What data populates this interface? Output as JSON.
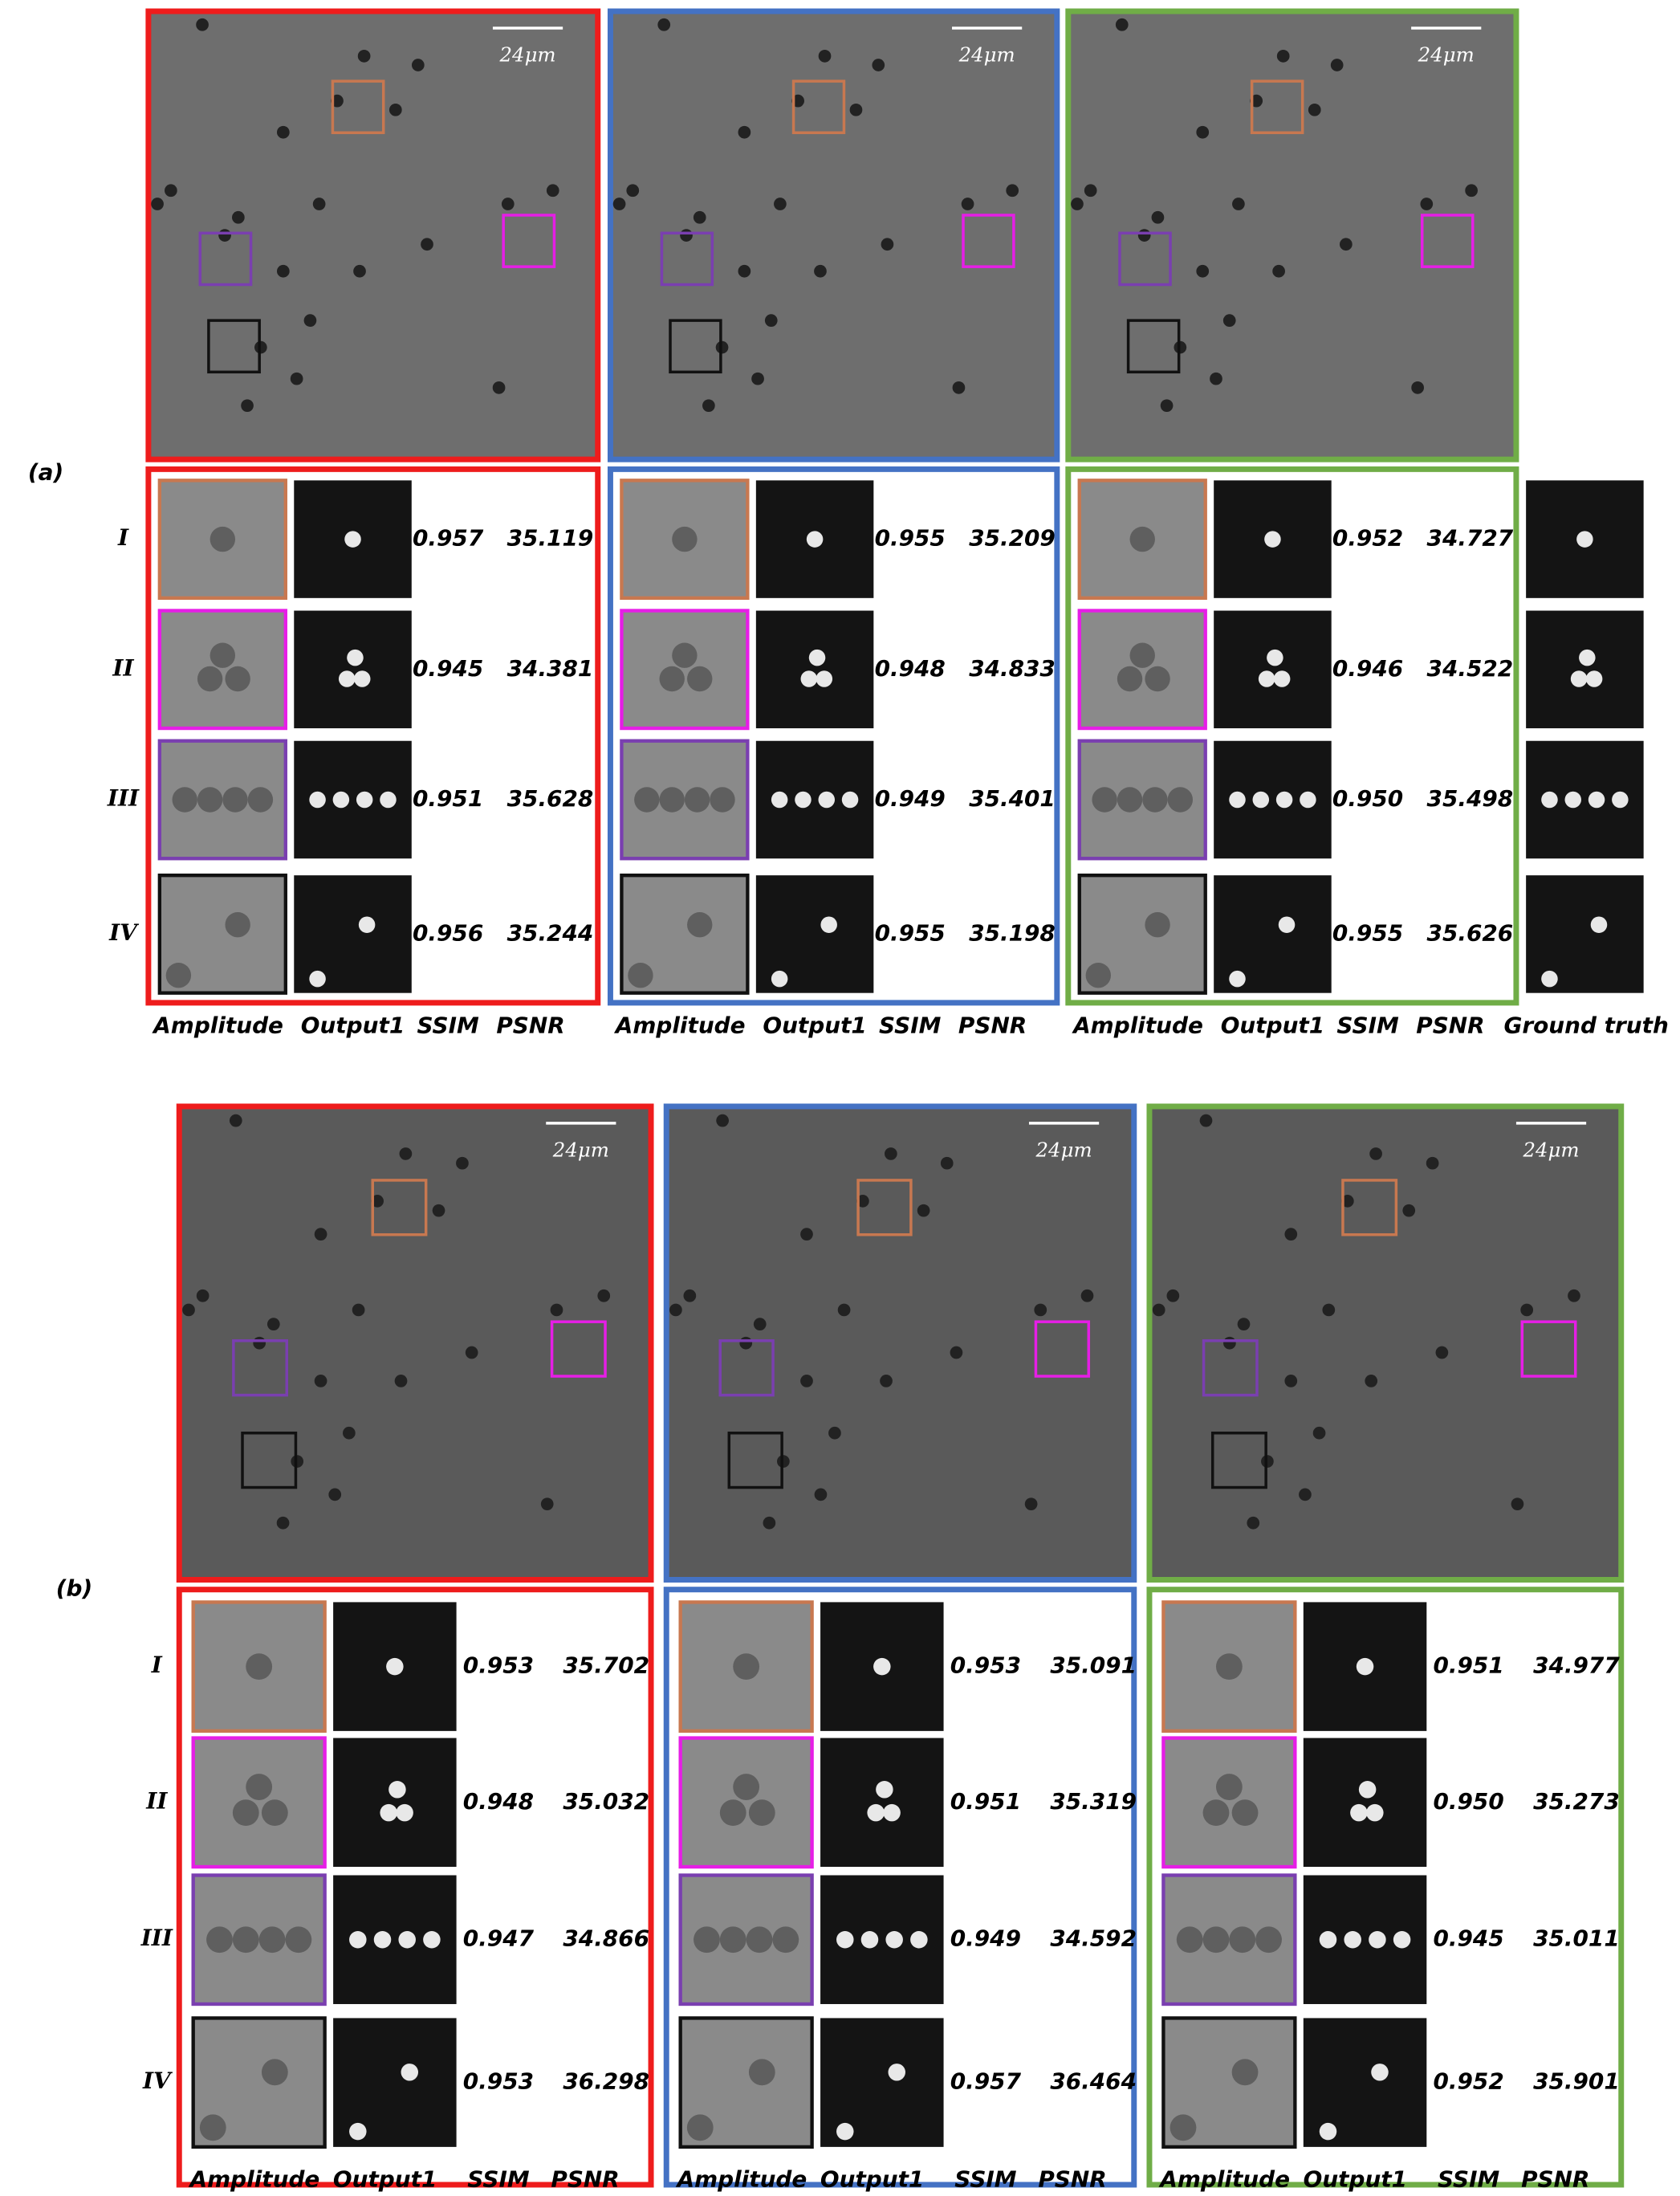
{
  "panels": [
    {
      "label": "(a)",
      "row_labels": [
        "I",
        "II",
        "III",
        "IV"
      ],
      "ground_truth_label": "Ground truth",
      "groups": [
        {
          "scale_bar": "24μm",
          "columns": [
            "Amplitude",
            "Output1",
            "SSIM",
            "PSNR"
          ],
          "rows": [
            [
              "0.957",
              "35.119"
            ],
            [
              "0.945",
              "34.381"
            ],
            [
              "0.951",
              "35.628"
            ],
            [
              "0.956",
              "35.244"
            ]
          ]
        },
        {
          "scale_bar": "24μm",
          "columns": [
            "Amplitude",
            "Output1",
            "SSIM",
            "PSNR"
          ],
          "rows": [
            [
              "0.955",
              "35.209"
            ],
            [
              "0.948",
              "34.833"
            ],
            [
              "0.949",
              "35.401"
            ],
            [
              "0.955",
              "35.198"
            ]
          ]
        },
        {
          "scale_bar": "24μm",
          "columns": [
            "Amplitude",
            "Output1",
            "SSIM",
            "PSNR"
          ],
          "rows": [
            [
              "0.952",
              "34.727"
            ],
            [
              "0.946",
              "34.522"
            ],
            [
              "0.950",
              "35.498"
            ],
            [
              "0.955",
              "35.626"
            ]
          ]
        }
      ]
    },
    {
      "label": "(b)",
      "row_labels": [
        "I",
        "II",
        "III",
        "IV"
      ],
      "groups": [
        {
          "scale_bar": "24μm",
          "columns": [
            "Amplitude",
            "Output1",
            "SSIM",
            "PSNR"
          ],
          "rows": [
            [
              "0.953",
              "35.702"
            ],
            [
              "0.948",
              "35.032"
            ],
            [
              "0.947",
              "34.866"
            ],
            [
              "0.953",
              "36.298"
            ]
          ]
        },
        {
          "scale_bar": "24μm",
          "columns": [
            "Amplitude",
            "Output1",
            "SSIM",
            "PSNR"
          ],
          "rows": [
            [
              "0.953",
              "35.091"
            ],
            [
              "0.951",
              "35.319"
            ],
            [
              "0.949",
              "34.592"
            ],
            [
              "0.957",
              "36.464"
            ]
          ]
        },
        {
          "scale_bar": "24μm",
          "columns": [
            "Amplitude",
            "Output1",
            "SSIM",
            "PSNR"
          ],
          "rows": [
            [
              "0.951",
              "34.977"
            ],
            [
              "0.950",
              "35.273"
            ],
            [
              "0.945",
              "35.011"
            ],
            [
              "0.952",
              "35.901"
            ]
          ]
        }
      ]
    }
  ]
}
